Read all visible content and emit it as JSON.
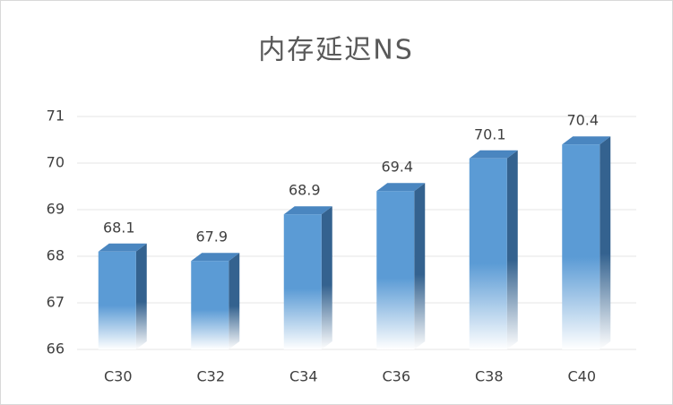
{
  "chart_data": {
    "type": "bar3d",
    "title": "内存延迟NS",
    "categories": [
      "C30",
      "C32",
      "C34",
      "C36",
      "C38",
      "C40"
    ],
    "values": [
      68.1,
      67.9,
      68.9,
      69.4,
      70.1,
      70.4
    ],
    "color": "#5b9bd5",
    "ylim": [
      66,
      71
    ],
    "yticks": [
      66,
      67,
      68,
      69,
      70,
      71
    ],
    "grid": true
  }
}
